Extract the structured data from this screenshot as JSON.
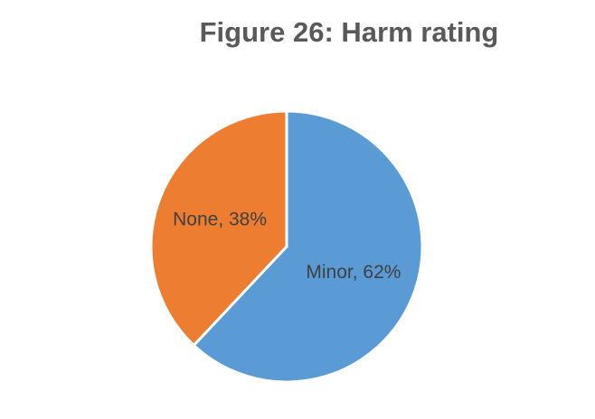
{
  "chart_data": {
    "type": "pie",
    "title": "Figure 26: Harm rating",
    "values": [
      62,
      38
    ],
    "value_labels": [
      "Minor, 62%",
      "None, 38%"
    ],
    "colors": [
      "#5b9bd5",
      "#ed7d31"
    ]
  }
}
